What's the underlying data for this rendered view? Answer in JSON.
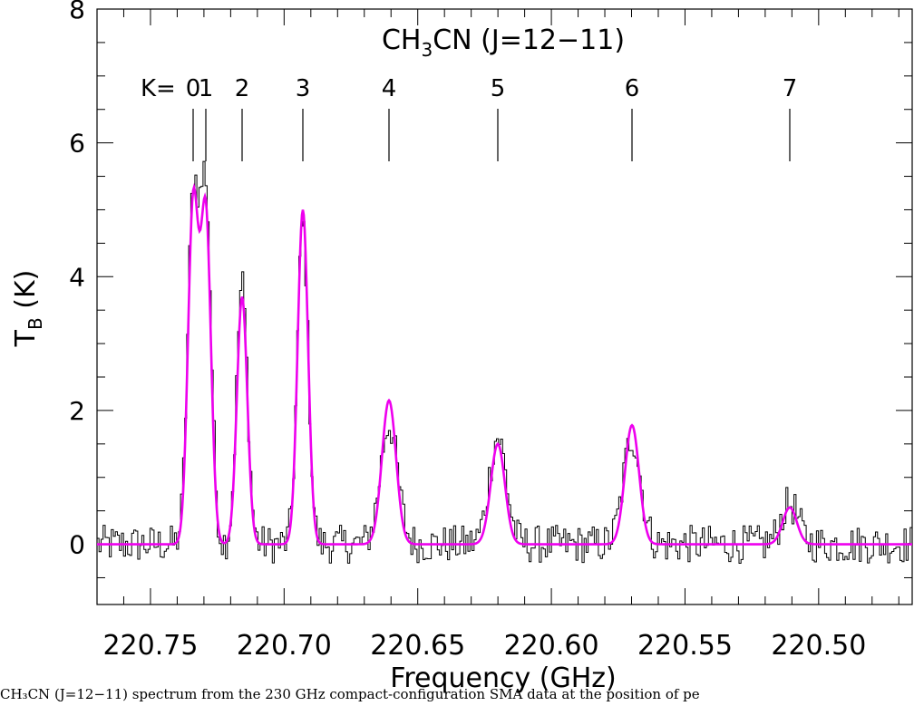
{
  "chart_data": {
    "type": "line",
    "title": "CH3CN (J=12−11)",
    "title_parts": {
      "base": "CH",
      "sub": "3",
      "rest": "CN  (J=12−11)"
    },
    "xlabel": "Frequency (GHz)",
    "ylabel": "T",
    "ylabel_sub": "B",
    "ylabel_unit": " (K)",
    "xlim": [
      220.77,
      220.465
    ],
    "ylim": [
      -0.9,
      8.0
    ],
    "x_reversed": true,
    "grid": false,
    "x_ticks": [
      "220.75",
      "220.70",
      "220.65",
      "220.60",
      "220.55",
      "220.50"
    ],
    "x_tick_values": [
      220.75,
      220.7,
      220.65,
      220.6,
      220.55,
      220.5
    ],
    "y_ticks": [
      "0",
      "2",
      "4",
      "6",
      "8"
    ],
    "y_tick_values": [
      0,
      2,
      4,
      6,
      8
    ],
    "k_prefix": "K=",
    "k_components": [
      {
        "label": "0",
        "freq": 220.7191
      },
      {
        "label": "1",
        "freq": 220.716
      },
      {
        "label": "2",
        "freq": 220.7034
      },
      {
        "label": "3",
        "freq": 220.6793
      },
      {
        "label": "4",
        "freq": 220.6489
      },
      {
        "label": "5",
        "freq": 220.6103
      },
      {
        "label": "6",
        "freq": 220.5943
      },
      {
        "label": "7",
        "freq": 220.5393
      }
    ],
    "k_label_text": [
      "0",
      "1",
      "2",
      "3",
      "4",
      "5",
      "6",
      "7"
    ],
    "series": [
      {
        "style": "step",
        "color": "#000000",
        "description_values": "observed spectrum (noise-like step curve)",
        "x_start": 220.77,
        "x_end": 220.465,
        "n_channels": 400,
        "peaks": [
          {
            "freq": 220.7191,
            "height": 5.1
          },
          {
            "freq": 220.716,
            "height": 5.2
          },
          {
            "freq": 220.7034,
            "height": 3.9
          },
          {
            "freq": 220.6793,
            "height": 4.8
          },
          {
            "freq": 220.6489,
            "height": 1.8
          },
          {
            "freq": 220.6103,
            "height": 1.6
          },
          {
            "freq": 220.5943,
            "height": 1.6
          },
          {
            "freq": 220.5393,
            "height": 0.6
          }
        ],
        "noise_rms": 0.22
      },
      {
        "style": "line",
        "color": "#ee00ee",
        "peaks": [
          {
            "freq": 220.7191,
            "height": 5.05
          },
          {
            "freq": 220.716,
            "height": 4.9
          },
          {
            "freq": 220.7034,
            "height": 3.7
          },
          {
            "freq": 220.6793,
            "height": 5.0
          },
          {
            "freq": 220.6489,
            "height": 2.15
          },
          {
            "freq": 220.6103,
            "height": 1.5
          },
          {
            "freq": 220.5943,
            "height": 1.78
          },
          {
            "freq": 220.5393,
            "height": 0.55
          }
        ],
        "fwhm": 0.0028
      }
    ]
  },
  "caption": "CH₃CN (J=12−11) spectrum from the 230 GHz compact-configuration SMA data at the position of pe"
}
